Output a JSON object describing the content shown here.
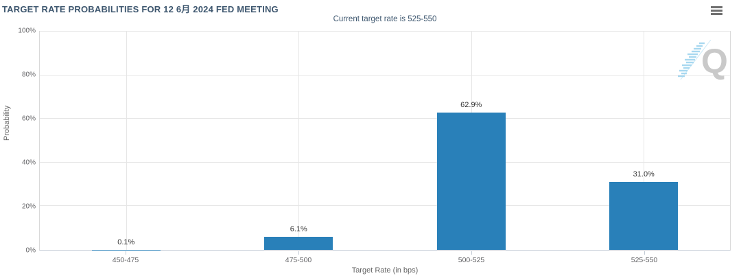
{
  "header": {
    "menu_icon": "hamburger-menu-icon"
  },
  "chart_data": {
    "type": "bar",
    "title": "TARGET RATE PROBABILITIES FOR 12 6月 2024 FED MEETING",
    "subtitle": "Current target rate is 525-550",
    "categories": [
      "450-475",
      "475-500",
      "500-525",
      "525-550"
    ],
    "values": [
      0.1,
      6.1,
      62.9,
      31.0
    ],
    "data_labels": [
      "0.1%",
      "6.1%",
      "62.9%",
      "31.0%"
    ],
    "xlabel": "Target Rate (in bps)",
    "ylabel": "Probability",
    "ylim": [
      0,
      100
    ],
    "yticks": [
      0,
      20,
      40,
      60,
      80,
      100
    ],
    "ytick_labels": [
      "0%",
      "20%",
      "40%",
      "60%",
      "80%",
      "100%"
    ],
    "grid": true,
    "legend": "none",
    "bar_color": "#2980b9"
  },
  "watermark": {
    "icon": "quikstrike-q-logo",
    "letter": "Q",
    "gray": "#c9c9c9",
    "blue": "#a8d8f0"
  },
  "colors": {
    "title_text": "#3e576f",
    "axis_text": "#606063",
    "data_label_text": "#333333",
    "gridline": "#e6e6e6",
    "plot_border": "#d9d9d9"
  }
}
